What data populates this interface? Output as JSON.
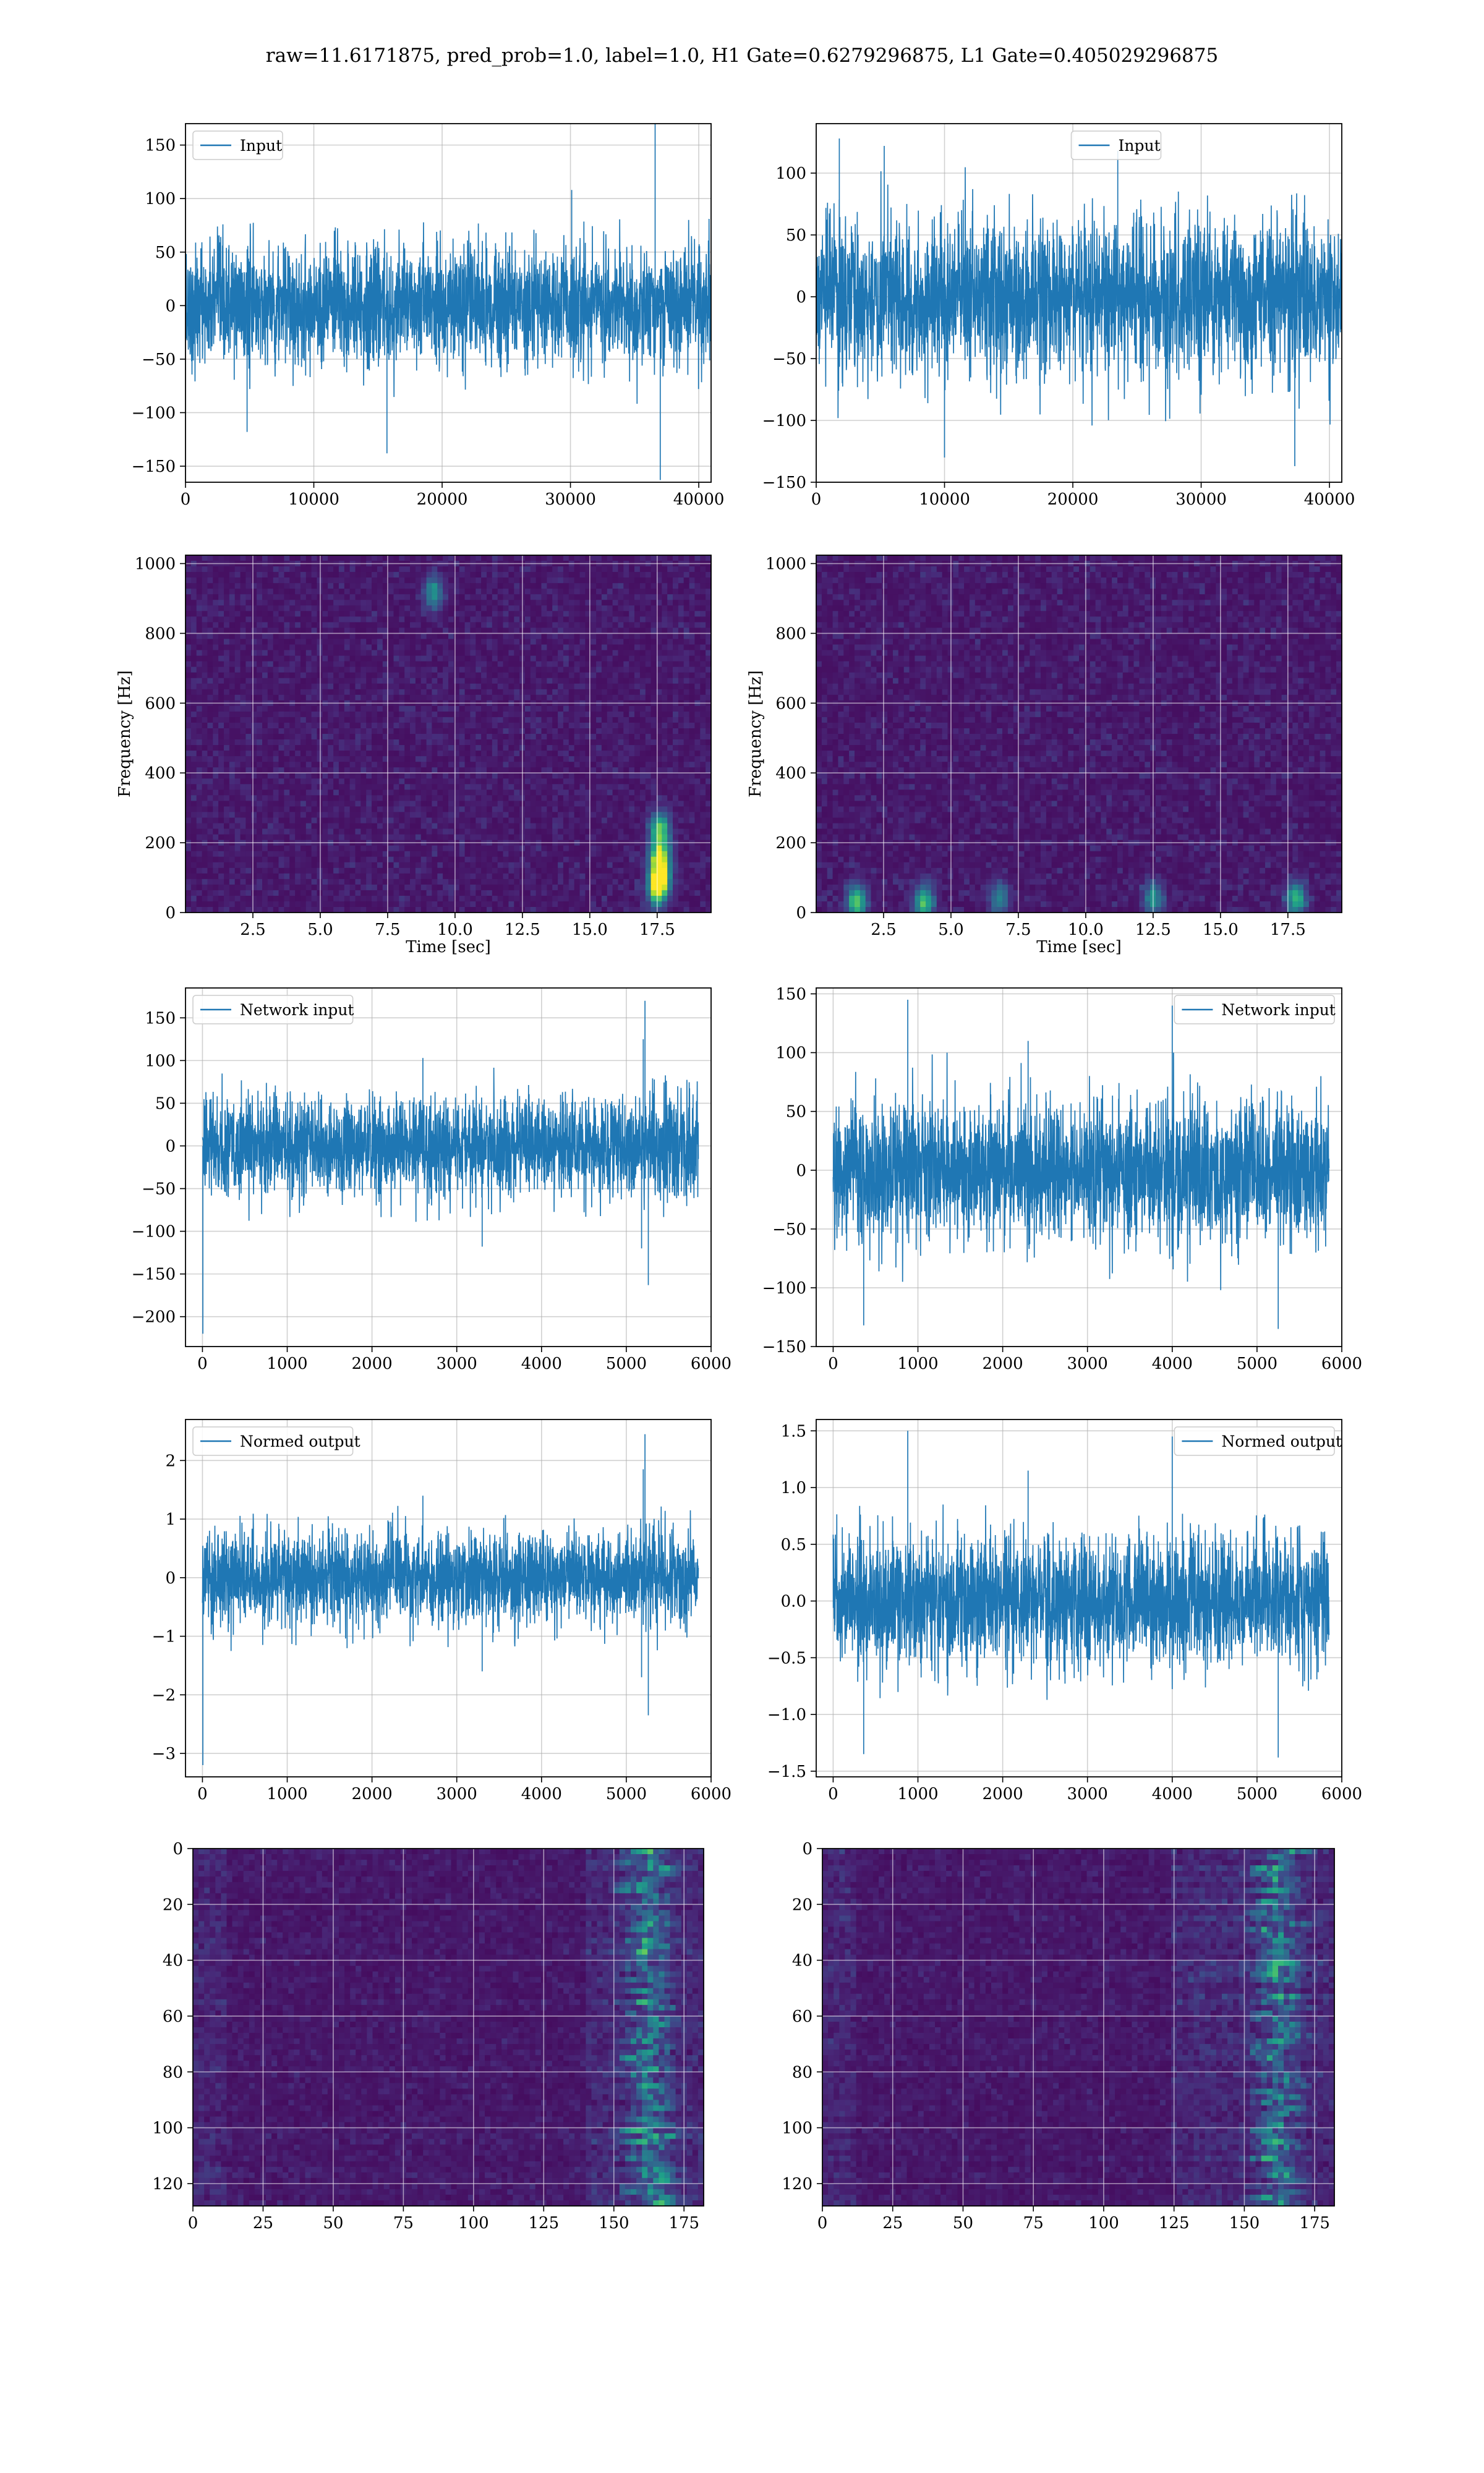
{
  "title": "raw=11.6171875, pred_prob=1.0, label=1.0, H1 Gate=0.6279296875, L1 Gate=0.405029296875",
  "colors": {
    "line": "#1f77b4",
    "grid": "#b0b0b0",
    "viridis_low": "#440154",
    "viridis_high": "#fde725"
  },
  "chart_data": [
    {
      "type": "line",
      "panel": "row1-left",
      "series": [
        {
          "name": "Input"
        }
      ],
      "xlim": [
        0,
        40960
      ],
      "ylim": [
        -165,
        170
      ],
      "xticks": [
        0,
        10000,
        20000,
        30000,
        40000
      ],
      "yticks": [
        -150,
        -100,
        -50,
        0,
        50,
        100,
        150
      ],
      "legend": "top-left",
      "grid": true,
      "noise_std": 27,
      "envelope_typical": [
        -80,
        80
      ],
      "spikes": [
        {
          "x": 36600,
          "y": 170
        },
        {
          "x": 37000,
          "y": -163
        },
        {
          "x": 15700,
          "y": -138
        },
        {
          "x": 4800,
          "y": -118
        },
        {
          "x": 30100,
          "y": 108
        }
      ]
    },
    {
      "type": "line",
      "panel": "row1-right",
      "series": [
        {
          "name": "Input"
        }
      ],
      "xlim": [
        0,
        40960
      ],
      "ylim": [
        -150,
        140
      ],
      "xticks": [
        0,
        10000,
        20000,
        30000,
        40000
      ],
      "yticks": [
        -150,
        -100,
        -50,
        0,
        50,
        100
      ],
      "legend": "top-center",
      "grid": true,
      "noise_std": 30,
      "envelope_typical": [
        -95,
        95
      ],
      "spikes": [
        {
          "x": 1800,
          "y": 128
        },
        {
          "x": 37300,
          "y": -137
        },
        {
          "x": 10000,
          "y": -130
        },
        {
          "x": 5300,
          "y": 122
        },
        {
          "x": 23500,
          "y": 118
        }
      ]
    },
    {
      "type": "heatmap",
      "panel": "row2-left",
      "xlabel": "Time [sec]",
      "ylabel": "Frequency [Hz]",
      "xlim": [
        0,
        19.5
      ],
      "ylim": [
        0,
        1024
      ],
      "xticks": [
        2.5,
        5.0,
        7.5,
        10.0,
        12.5,
        15.0,
        17.5
      ],
      "yticks": [
        0,
        200,
        400,
        600,
        800,
        1000
      ],
      "colormap": "viridis",
      "grid": true,
      "hotspots": [
        {
          "t": 17.6,
          "f": 100,
          "v": 0.95
        },
        {
          "t": 17.6,
          "f": 160,
          "v": 0.85
        },
        {
          "t": 17.6,
          "f": 240,
          "v": 0.7
        },
        {
          "t": 17.5,
          "f": 60,
          "v": 0.6
        },
        {
          "t": 9.2,
          "f": 915,
          "v": 0.45
        }
      ]
    },
    {
      "type": "heatmap",
      "panel": "row2-right",
      "xlabel": "Time [sec]",
      "ylabel": "Frequency [Hz]",
      "xlim": [
        0,
        19.5
      ],
      "ylim": [
        0,
        1024
      ],
      "xticks": [
        2.5,
        5.0,
        7.5,
        10.0,
        12.5,
        15.0,
        17.5
      ],
      "yticks": [
        0,
        200,
        400,
        600,
        800,
        1000
      ],
      "colormap": "viridis",
      "grid": true,
      "hotspots": [
        {
          "t": 1.5,
          "f": 30,
          "v": 0.7
        },
        {
          "t": 4.0,
          "f": 30,
          "v": 0.65
        },
        {
          "t": 17.8,
          "f": 40,
          "v": 0.6
        },
        {
          "t": 12.5,
          "f": 40,
          "v": 0.45
        },
        {
          "t": 6.8,
          "f": 40,
          "v": 0.4
        }
      ]
    },
    {
      "type": "line",
      "panel": "row3-left",
      "series": [
        {
          "name": "Network input"
        }
      ],
      "xlim": [
        -200,
        6000
      ],
      "ylim": [
        -235,
        185
      ],
      "xticks": [
        0,
        1000,
        2000,
        3000,
        4000,
        5000,
        6000
      ],
      "yticks": [
        -200,
        -150,
        -100,
        -50,
        0,
        50,
        100,
        150
      ],
      "legend": "top-left",
      "grid": true,
      "noise_std": 28,
      "envelope_typical": [
        -80,
        80
      ],
      "spikes": [
        {
          "x": 5,
          "y": -220
        },
        {
          "x": 5220,
          "y": 170
        },
        {
          "x": 5200,
          "y": 125
        },
        {
          "x": 5260,
          "y": -163
        },
        {
          "x": 5180,
          "y": -120
        },
        {
          "x": 3300,
          "y": -118
        },
        {
          "x": 2600,
          "y": 103
        }
      ]
    },
    {
      "type": "line",
      "panel": "row3-right",
      "series": [
        {
          "name": "Network input"
        }
      ],
      "xlim": [
        -200,
        6000
      ],
      "ylim": [
        -150,
        155
      ],
      "xticks": [
        0,
        1000,
        2000,
        3000,
        4000,
        5000,
        6000
      ],
      "yticks": [
        -150,
        -100,
        -50,
        0,
        50,
        100,
        150
      ],
      "legend": "top-right",
      "grid": true,
      "noise_std": 28,
      "envelope_typical": [
        -90,
        90
      ],
      "spikes": [
        {
          "x": 880,
          "y": 145
        },
        {
          "x": 5250,
          "y": -135
        },
        {
          "x": 360,
          "y": -132
        },
        {
          "x": 4000,
          "y": 140
        },
        {
          "x": 2300,
          "y": 110
        }
      ]
    },
    {
      "type": "line",
      "panel": "row4-left",
      "series": [
        {
          "name": "Normed output"
        }
      ],
      "xlim": [
        -200,
        6000
      ],
      "ylim": [
        -3.4,
        2.7
      ],
      "xticks": [
        0,
        1000,
        2000,
        3000,
        4000,
        5000,
        6000
      ],
      "yticks": [
        -3,
        -2,
        -1,
        0,
        1,
        2
      ],
      "legend": "top-left",
      "grid": true,
      "noise_std": 0.38,
      "envelope_typical": [
        -1.1,
        1.1
      ],
      "spikes": [
        {
          "x": 5,
          "y": -3.2
        },
        {
          "x": 5220,
          "y": 2.45
        },
        {
          "x": 5200,
          "y": 1.85
        },
        {
          "x": 5260,
          "y": -2.35
        },
        {
          "x": 5180,
          "y": -1.7
        },
        {
          "x": 3300,
          "y": -1.6
        },
        {
          "x": 2600,
          "y": 1.4
        }
      ]
    },
    {
      "type": "line",
      "panel": "row4-right",
      "series": [
        {
          "name": "Normed output"
        }
      ],
      "xlim": [
        -200,
        6000
      ],
      "ylim": [
        -1.55,
        1.6
      ],
      "xticks": [
        0,
        1000,
        2000,
        3000,
        4000,
        5000,
        6000
      ],
      "yticks": [
        -1.5,
        -1.0,
        -0.5,
        0.0,
        0.5,
        1.0,
        1.5
      ],
      "legend": "top-right",
      "grid": true,
      "noise_std": 0.27,
      "envelope_typical": [
        -0.85,
        0.85
      ],
      "spikes": [
        {
          "x": 880,
          "y": 1.5
        },
        {
          "x": 5250,
          "y": -1.38
        },
        {
          "x": 360,
          "y": -1.35
        },
        {
          "x": 4000,
          "y": 1.45
        },
        {
          "x": 2300,
          "y": 1.15
        }
      ]
    },
    {
      "type": "heatmap",
      "panel": "row5-left",
      "colormap": "viridis",
      "grid": true,
      "xlim": [
        0,
        182
      ],
      "ylim": [
        128,
        0
      ],
      "xticks": [
        0,
        25,
        50,
        75,
        100,
        125,
        150,
        175
      ],
      "yticks": [
        0,
        20,
        40,
        60,
        80,
        100,
        120
      ],
      "active_band": [
        140,
        180
      ],
      "peak_cols": [
        155,
        170
      ]
    },
    {
      "type": "heatmap",
      "panel": "row5-right",
      "colormap": "viridis",
      "grid": true,
      "xlim": [
        0,
        182
      ],
      "ylim": [
        128,
        0
      ],
      "xticks": [
        0,
        25,
        50,
        75,
        100,
        125,
        150,
        175
      ],
      "yticks": [
        0,
        20,
        40,
        60,
        80,
        100,
        120
      ],
      "active_band": [
        125,
        180
      ],
      "peak_cols": [
        155,
        170
      ]
    }
  ]
}
